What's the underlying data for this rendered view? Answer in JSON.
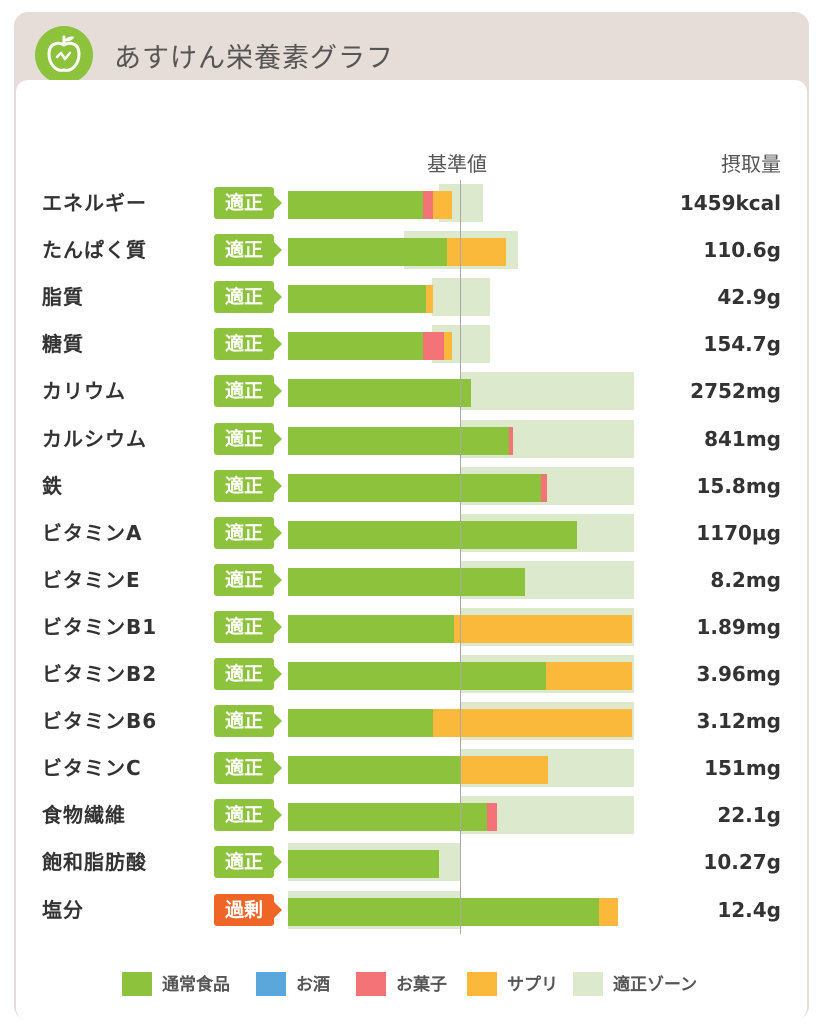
{
  "header": {
    "title": "あすけん栄養素グラフ",
    "logo_icon": "apple-icon"
  },
  "columns": {
    "reference": "基準値",
    "intake": "摂取量"
  },
  "colors": {
    "normal_food": "#8dc33c",
    "alcohol": "#5aa7dc",
    "snacks": "#f47377",
    "supplement": "#fbb93b",
    "zone": "#dde9cc",
    "badge_ok": "#8dc33c",
    "badge_excess": "#ef6527"
  },
  "legend": [
    {
      "key": "normal_food",
      "label": "通常食品"
    },
    {
      "key": "alcohol",
      "label": "お酒"
    },
    {
      "key": "snacks",
      "label": "お菓子"
    },
    {
      "key": "supplement",
      "label": "サプリ"
    },
    {
      "key": "zone",
      "label": "適正ゾーン"
    }
  ],
  "chart_data": {
    "type": "bar",
    "orientation": "horizontal",
    "stacked": true,
    "unit": "percent_of_reference",
    "reference_value": 100,
    "scale_max": 200,
    "categories": [
      "エネルギー",
      "たんぱく質",
      "脂質",
      "糖質",
      "カリウム",
      "カルシウム",
      "鉄",
      "ビタミンA",
      "ビタミンE",
      "ビタミンB1",
      "ビタミンB2",
      "ビタミンB6",
      "ビタミンC",
      "食物繊維",
      "飽和脂肪酸",
      "塩分"
    ],
    "intake_labels": [
      "1459kcal",
      "110.6g",
      "42.9g",
      "154.7g",
      "2752mg",
      "841mg",
      "15.8mg",
      "1170μg",
      "8.2mg",
      "1.89mg",
      "3.96mg",
      "3.12mg",
      "151mg",
      "22.1g",
      "10.27g",
      "12.4g"
    ],
    "status": [
      "適正",
      "適正",
      "適正",
      "適正",
      "適正",
      "適正",
      "適正",
      "適正",
      "適正",
      "適正",
      "適正",
      "適正",
      "適正",
      "適正",
      "適正",
      "過剰"
    ],
    "series": [
      {
        "name": "通常食品",
        "values": [
          78,
          92,
          80,
          78,
          106,
          128,
          146,
          167,
          137,
          96,
          149,
          84,
          100,
          115,
          87,
          180
        ]
      },
      {
        "name": "お酒",
        "values": [
          0,
          0,
          0,
          0,
          0,
          0,
          0,
          0,
          0,
          0,
          0,
          0,
          0,
          0,
          0,
          0
        ]
      },
      {
        "name": "お菓子",
        "values": [
          6,
          0,
          0,
          12,
          0,
          2,
          4,
          0,
          0,
          0,
          0,
          0,
          0,
          6,
          0,
          0
        ]
      },
      {
        "name": "サプリ",
        "values": [
          11,
          34,
          4,
          5,
          0,
          0,
          0,
          0,
          0,
          103,
          50,
          115,
          50,
          0,
          0,
          11
        ]
      }
    ],
    "zones": [
      [
        87,
        113
      ],
      [
        67,
        133
      ],
      [
        83,
        117
      ],
      [
        83,
        117
      ],
      [
        100,
        200
      ],
      [
        100,
        200
      ],
      [
        100,
        200
      ],
      [
        100,
        200
      ],
      [
        100,
        200
      ],
      [
        100,
        200
      ],
      [
        100,
        200
      ],
      [
        100,
        200
      ],
      [
        100,
        200
      ],
      [
        100,
        200
      ],
      [
        0,
        100
      ],
      [
        0,
        100
      ]
    ]
  }
}
